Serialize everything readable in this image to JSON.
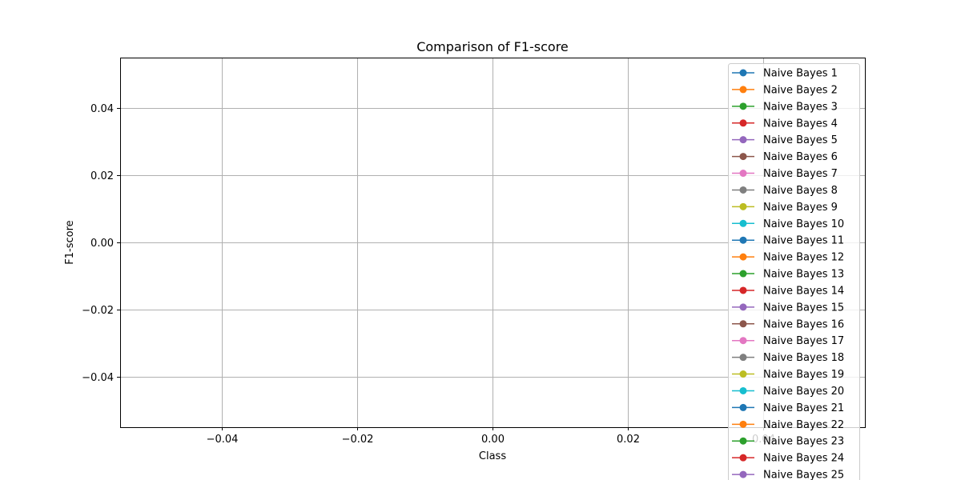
{
  "chart_data": {
    "type": "line",
    "title": "Comparison of F1-score",
    "xlabel": "Class",
    "ylabel": "F1-score",
    "xlim": [
      -0.055,
      0.055
    ],
    "ylim": [
      -0.055,
      0.055
    ],
    "x_ticks": [
      -0.04,
      -0.02,
      0.0,
      0.02,
      0.04
    ],
    "x_tick_labels": [
      "−0.04",
      "−0.02",
      "0.00",
      "0.02",
      "0.04"
    ],
    "y_ticks": [
      -0.04,
      -0.02,
      0.0,
      0.02,
      0.04
    ],
    "y_tick_labels": [
      "−0.04",
      "−0.02",
      "0.00",
      "0.02",
      "0.04"
    ],
    "grid": true,
    "legend_position": "right",
    "series": [
      {
        "name": "Naive Bayes 1",
        "color": "#1f77b4",
        "x": [],
        "y": []
      },
      {
        "name": "Naive Bayes 2",
        "color": "#ff7f0e",
        "x": [],
        "y": []
      },
      {
        "name": "Naive Bayes 3",
        "color": "#2ca02c",
        "x": [],
        "y": []
      },
      {
        "name": "Naive Bayes 4",
        "color": "#d62728",
        "x": [],
        "y": []
      },
      {
        "name": "Naive Bayes 5",
        "color": "#9467bd",
        "x": [],
        "y": []
      },
      {
        "name": "Naive Bayes 6",
        "color": "#8c564b",
        "x": [],
        "y": []
      },
      {
        "name": "Naive Bayes 7",
        "color": "#e377c2",
        "x": [],
        "y": []
      },
      {
        "name": "Naive Bayes 8",
        "color": "#7f7f7f",
        "x": [],
        "y": []
      },
      {
        "name": "Naive Bayes 9",
        "color": "#bcbd22",
        "x": [],
        "y": []
      },
      {
        "name": "Naive Bayes 10",
        "color": "#17becf",
        "x": [],
        "y": []
      },
      {
        "name": "Naive Bayes 11",
        "color": "#1f77b4",
        "x": [],
        "y": []
      },
      {
        "name": "Naive Bayes 12",
        "color": "#ff7f0e",
        "x": [],
        "y": []
      },
      {
        "name": "Naive Bayes 13",
        "color": "#2ca02c",
        "x": [],
        "y": []
      },
      {
        "name": "Naive Bayes 14",
        "color": "#d62728",
        "x": [],
        "y": []
      },
      {
        "name": "Naive Bayes 15",
        "color": "#9467bd",
        "x": [],
        "y": []
      },
      {
        "name": "Naive Bayes 16",
        "color": "#8c564b",
        "x": [],
        "y": []
      },
      {
        "name": "Naive Bayes 17",
        "color": "#e377c2",
        "x": [],
        "y": []
      },
      {
        "name": "Naive Bayes 18",
        "color": "#7f7f7f",
        "x": [],
        "y": []
      },
      {
        "name": "Naive Bayes 19",
        "color": "#bcbd22",
        "x": [],
        "y": []
      },
      {
        "name": "Naive Bayes 20",
        "color": "#17becf",
        "x": [],
        "y": []
      },
      {
        "name": "Naive Bayes 21",
        "color": "#1f77b4",
        "x": [],
        "y": []
      },
      {
        "name": "Naive Bayes 22",
        "color": "#ff7f0e",
        "x": [],
        "y": []
      },
      {
        "name": "Naive Bayes 23",
        "color": "#2ca02c",
        "x": [],
        "y": []
      },
      {
        "name": "Naive Bayes 24",
        "color": "#d62728",
        "x": [],
        "y": []
      },
      {
        "name": "Naive Bayes 25",
        "color": "#9467bd",
        "x": [],
        "y": []
      }
    ]
  }
}
